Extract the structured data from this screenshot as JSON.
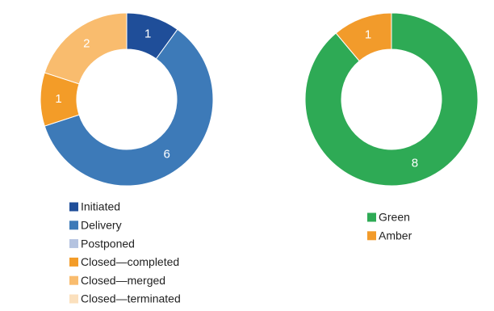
{
  "chart_data": [
    {
      "type": "donut",
      "categories": [
        "Initiated",
        "Delivery",
        "Postponed",
        "Closed—completed",
        "Closed—merged",
        "Closed—terminated"
      ],
      "values": [
        1,
        6,
        0,
        1,
        2,
        0
      ],
      "colors": [
        "#1f4e99",
        "#3d7ab8",
        "#b4c3e0",
        "#f39c28",
        "#f9bc6e",
        "#fbe0bd"
      ]
    },
    {
      "type": "donut",
      "categories": [
        "Green",
        "Amber"
      ],
      "values": [
        8,
        1
      ],
      "colors": [
        "#2eaa55",
        "#f29b2b"
      ]
    }
  ]
}
